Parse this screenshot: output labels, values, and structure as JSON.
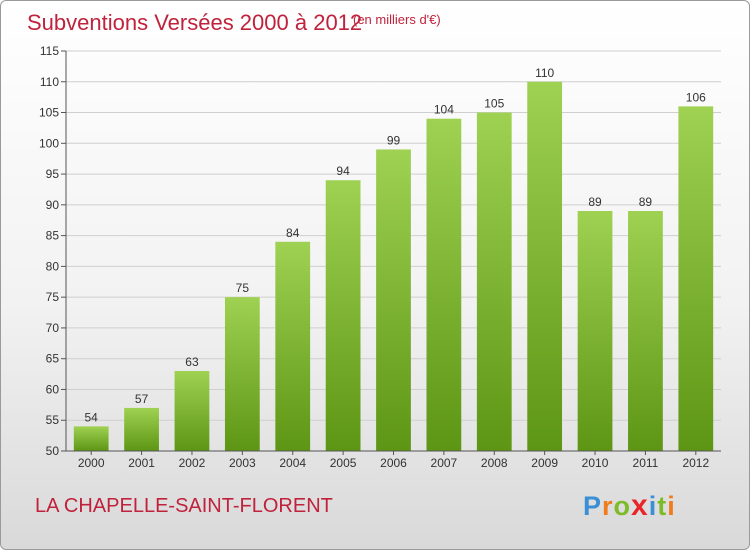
{
  "header": {
    "title": "Subventions Versées 2000 à 2012",
    "unit": "(en milliers d'€)"
  },
  "footer": {
    "commune": "LA CHAPELLE-SAINT-FLORENT",
    "logo_letters": [
      "P",
      "r",
      "o",
      "x",
      "i",
      "t",
      "i"
    ],
    "logo_colors": [
      "#3a8fd6",
      "#f07c1e",
      "#7dbb2a",
      "#e8262a",
      "#3a8fd6",
      "#7dbb2a",
      "#f07c1e"
    ]
  },
  "colors": {
    "title": "#c0223c",
    "bar_light": "#9fd152",
    "bar_dark": "#5d9614",
    "grid": "#cfcfcf",
    "axis": "#555555",
    "text": "#333333"
  },
  "chart_data": {
    "type": "bar",
    "title": "Subventions Versées 2000 à 2012",
    "subtitle": "(en milliers d'€)",
    "categories": [
      "2000",
      "2001",
      "2002",
      "2003",
      "2004",
      "2005",
      "2006",
      "2007",
      "2008",
      "2009",
      "2010",
      "2011",
      "2012"
    ],
    "values": [
      54,
      57,
      63,
      75,
      84,
      94,
      99,
      104,
      105,
      110,
      89,
      89,
      106
    ],
    "ylim": [
      50,
      115
    ],
    "yticks": [
      50,
      55,
      60,
      65,
      70,
      75,
      80,
      85,
      90,
      95,
      100,
      105,
      110,
      115
    ],
    "grid": true,
    "data_labels": true,
    "xlabel": "",
    "ylabel": ""
  }
}
